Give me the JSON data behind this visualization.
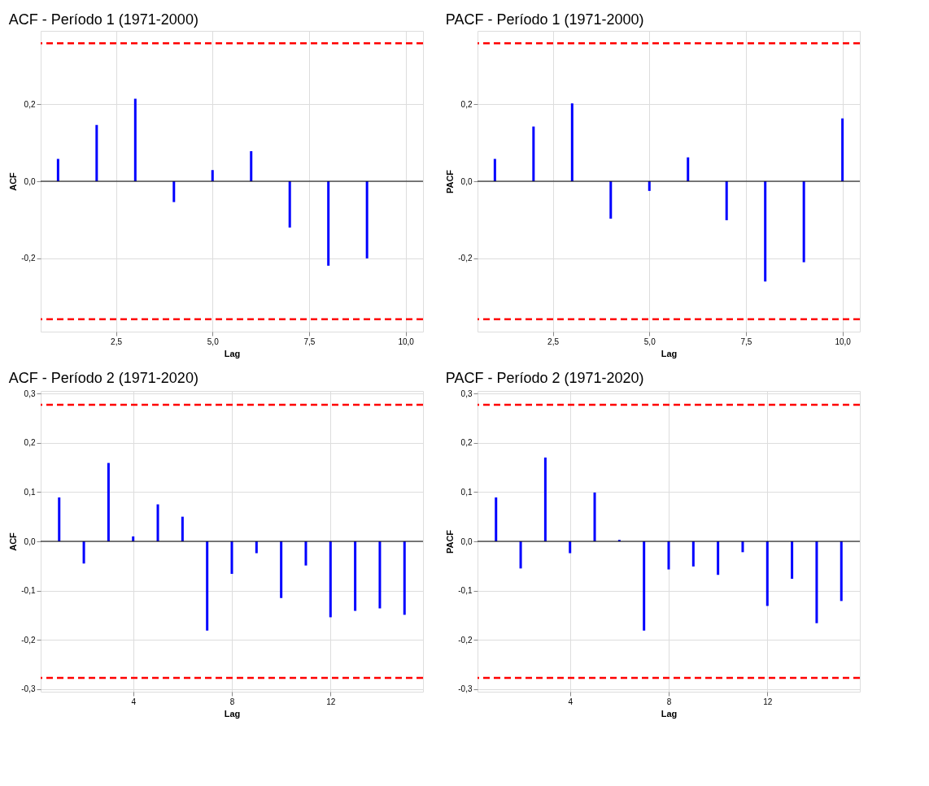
{
  "chart_data": [
    {
      "type": "bar",
      "title": "ACF - Período 1 (1971-2000)",
      "xlabel": "Lag",
      "ylabel": "ACF",
      "x": [
        1,
        2,
        3,
        4,
        5,
        6,
        7,
        8,
        9
      ],
      "series": [
        {
          "color": "#0000ff",
          "values": [
            0.058,
            0.146,
            0.214,
            -0.054,
            0.029,
            0.078,
            -0.12,
            -0.219,
            -0.2
          ]
        }
      ],
      "xlim": [
        0.55,
        10.45
      ],
      "xticks": [
        {
          "value": 2.5,
          "label": "2,5"
        },
        {
          "value": 5,
          "label": "5,0"
        },
        {
          "value": 7.5,
          "label": "7,5"
        },
        {
          "value": 10,
          "label": "10,0"
        }
      ],
      "ylim": [
        -0.39,
        0.39
      ],
      "yticks": [
        {
          "value": -0.2,
          "label": "-0,2"
        },
        {
          "value": 0,
          "label": "0,0"
        },
        {
          "value": 0.2,
          "label": "0,2"
        }
      ],
      "ref_lines": [
        {
          "axis": "y",
          "value": 0.358,
          "color": "#ff0000",
          "line_style": "dashed"
        },
        {
          "axis": "y",
          "value": -0.358,
          "color": "#ff0000",
          "line_style": "dashed"
        },
        {
          "axis": "y",
          "value": 0,
          "color": "#000000",
          "line_style": "solid"
        }
      ],
      "grid": true
    },
    {
      "type": "bar",
      "title": "PACF - Período 1 (1971-2000)",
      "xlabel": "Lag",
      "ylabel": "PACF",
      "x": [
        1,
        2,
        3,
        4,
        5,
        6,
        7,
        8,
        9,
        10
      ],
      "series": [
        {
          "color": "#0000ff",
          "values": [
            0.058,
            0.142,
            0.202,
            -0.097,
            -0.025,
            0.062,
            -0.101,
            -0.26,
            -0.21,
            0.163
          ]
        }
      ],
      "xlim": [
        0.55,
        10.45
      ],
      "xticks": [
        {
          "value": 2.5,
          "label": "2,5"
        },
        {
          "value": 5,
          "label": "5,0"
        },
        {
          "value": 7.5,
          "label": "7,5"
        },
        {
          "value": 10,
          "label": "10,0"
        }
      ],
      "ylim": [
        -0.39,
        0.39
      ],
      "yticks": [
        {
          "value": -0.2,
          "label": "-0,2"
        },
        {
          "value": 0,
          "label": "0,0"
        },
        {
          "value": 0.2,
          "label": "0,2"
        }
      ],
      "ref_lines": [
        {
          "axis": "y",
          "value": 0.358,
          "color": "#ff0000",
          "line_style": "dashed"
        },
        {
          "axis": "y",
          "value": -0.358,
          "color": "#ff0000",
          "line_style": "dashed"
        },
        {
          "axis": "y",
          "value": 0,
          "color": "#000000",
          "line_style": "solid"
        }
      ],
      "grid": true
    },
    {
      "type": "bar",
      "title": "ACF - Período 2 (1971-2020)",
      "xlabel": "Lag",
      "ylabel": "ACF",
      "x": [
        1,
        2,
        3,
        4,
        5,
        6,
        7,
        8,
        9,
        10,
        11,
        12,
        13,
        14,
        15
      ],
      "series": [
        {
          "color": "#0000ff",
          "values": [
            0.089,
            -0.045,
            0.159,
            0.01,
            0.075,
            0.05,
            -0.181,
            -0.066,
            -0.024,
            -0.115,
            -0.049,
            -0.154,
            -0.141,
            -0.136,
            -0.149
          ]
        }
      ],
      "xlim": [
        0.25,
        15.75
      ],
      "xticks": [
        4,
        8,
        12
      ],
      "ylim": [
        -0.305,
        0.305
      ],
      "yticks": [
        {
          "value": -0.3,
          "label": "-0,3"
        },
        {
          "value": -0.2,
          "label": "-0,2"
        },
        {
          "value": -0.1,
          "label": "-0,1"
        },
        {
          "value": 0,
          "label": "0,0"
        },
        {
          "value": 0.1,
          "label": "0,1"
        },
        {
          "value": 0.2,
          "label": "0,2"
        },
        {
          "value": 0.3,
          "label": "0,3"
        }
      ],
      "ref_lines": [
        {
          "axis": "y",
          "value": 0.277,
          "color": "#ff0000",
          "line_style": "dashed"
        },
        {
          "axis": "y",
          "value": -0.277,
          "color": "#ff0000",
          "line_style": "dashed"
        },
        {
          "axis": "y",
          "value": 0,
          "color": "#000000",
          "line_style": "solid"
        }
      ],
      "grid": true
    },
    {
      "type": "bar",
      "title": "PACF - Período 2 (1971-2020)",
      "xlabel": "Lag",
      "ylabel": "PACF",
      "x": [
        1,
        2,
        3,
        4,
        5,
        6,
        7,
        8,
        9,
        10,
        11,
        12,
        13,
        14,
        15
      ],
      "series": [
        {
          "color": "#0000ff",
          "values": [
            0.089,
            -0.055,
            0.17,
            -0.024,
            0.099,
            0.003,
            -0.181,
            -0.057,
            -0.051,
            -0.068,
            -0.022,
            -0.131,
            -0.076,
            -0.166,
            -0.121
          ]
        }
      ],
      "xlim": [
        0.25,
        15.75
      ],
      "xticks": [
        4,
        8,
        12
      ],
      "ylim": [
        -0.305,
        0.305
      ],
      "yticks": [
        {
          "value": -0.3,
          "label": "-0,3"
        },
        {
          "value": -0.2,
          "label": "-0,2"
        },
        {
          "value": -0.1,
          "label": "-0,1"
        },
        {
          "value": 0,
          "label": "0,0"
        },
        {
          "value": 0.1,
          "label": "0,1"
        },
        {
          "value": 0.2,
          "label": "0,2"
        },
        {
          "value": 0.3,
          "label": "0,3"
        }
      ],
      "ref_lines": [
        {
          "axis": "y",
          "value": 0.277,
          "color": "#ff0000",
          "line_style": "dashed"
        },
        {
          "axis": "y",
          "value": -0.277,
          "color": "#ff0000",
          "line_style": "dashed"
        },
        {
          "axis": "y",
          "value": 0,
          "color": "#000000",
          "line_style": "solid"
        }
      ],
      "grid": true
    }
  ]
}
